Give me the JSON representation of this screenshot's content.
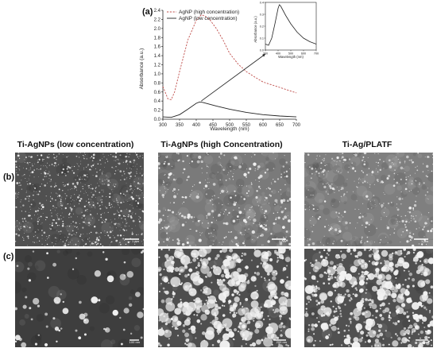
{
  "figure": {
    "panel_a": "(a)",
    "panel_b": "(b)",
    "panel_c": "(c)",
    "columns": [
      {
        "title": "Ti-AgNPs (low concentration)"
      },
      {
        "title": "Ti-AgNPs (high Concentration)"
      },
      {
        "title": "Ti-Ag/PLATF"
      }
    ],
    "scale_bars": {
      "row_b": [
        "1 µm",
        "1 µm",
        "1 µm"
      ],
      "row_c": [
        "100 nm",
        "200 nm",
        "200 nm"
      ]
    },
    "sem_colors": {
      "low_bg": "#505050",
      "high_bg": "#7a7a7a",
      "platf_bg": "#7f7f7f",
      "particle": "#f2f2f2"
    }
  },
  "chart_data": [
    {
      "type": "line",
      "xlabel": "Wavelength (nm)",
      "ylabel": "Absorbance (a.u.)",
      "xlim": [
        300,
        700
      ],
      "ylim": [
        0,
        2.4
      ],
      "xticks": [
        300,
        350,
        400,
        450,
        500,
        550,
        600,
        650,
        700
      ],
      "yticks": [
        0.0,
        0.2,
        0.4,
        0.6,
        0.8,
        1.0,
        1.2,
        1.4,
        1.6,
        1.8,
        2.0,
        2.2,
        2.4
      ],
      "legend": "top-left",
      "series": [
        {
          "name": "AgNP (high concentration)",
          "style": "dashed",
          "color": "#c0504d",
          "x": [
            300,
            315,
            325,
            335,
            350,
            375,
            400,
            415,
            425,
            440,
            460,
            480,
            500,
            525,
            550,
            575,
            600,
            650,
            700
          ],
          "y": [
            0.72,
            0.45,
            0.43,
            0.6,
            1.05,
            1.75,
            2.18,
            2.3,
            2.28,
            2.2,
            2.0,
            1.75,
            1.45,
            1.22,
            1.05,
            0.93,
            0.82,
            0.7,
            0.58
          ]
        },
        {
          "name": "AgNP (low concentration)",
          "style": "solid",
          "color": "#222222",
          "x": [
            300,
            325,
            350,
            375,
            400,
            410,
            420,
            440,
            460,
            500,
            550,
            600,
            650,
            700
          ],
          "y": [
            0.05,
            0.04,
            0.1,
            0.22,
            0.35,
            0.38,
            0.37,
            0.33,
            0.29,
            0.22,
            0.15,
            0.1,
            0.07,
            0.05
          ]
        }
      ]
    },
    {
      "type": "line",
      "xlabel": "Wavelength (nm)",
      "ylabel": "Absorbance (a.u.)",
      "xlim": [
        300,
        700
      ],
      "ylim": [
        0.0,
        0.4
      ],
      "xticks": [
        300,
        400,
        500,
        600,
        700
      ],
      "yticks": [
        0.0,
        0.1,
        0.2,
        0.3,
        0.4
      ],
      "series": [
        {
          "style": "solid",
          "color": "#222222",
          "x": [
            300,
            325,
            350,
            375,
            400,
            410,
            420,
            440,
            460,
            500,
            550,
            600,
            650,
            700
          ],
          "y": [
            0.05,
            0.04,
            0.1,
            0.22,
            0.35,
            0.38,
            0.37,
            0.33,
            0.29,
            0.22,
            0.15,
            0.1,
            0.07,
            0.05
          ]
        }
      ]
    }
  ]
}
